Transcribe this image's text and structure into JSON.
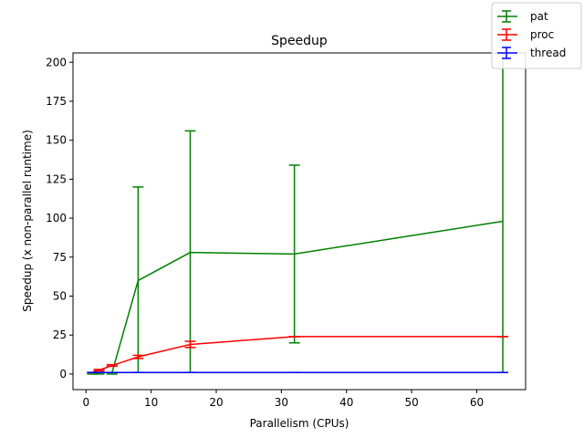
{
  "chart_data": {
    "type": "line",
    "title": "Speedup",
    "xlabel": "Parallelism (CPUs)",
    "ylabel": "Speedup (x non-parallel runtime)",
    "xlim": [
      -2,
      67.5
    ],
    "ylim": [
      -10,
      206
    ],
    "xticks": [
      0,
      10,
      20,
      30,
      40,
      50,
      60
    ],
    "yticks": [
      0,
      25,
      50,
      75,
      100,
      125,
      150,
      175,
      200
    ],
    "grid": false,
    "legend_position": "top-right",
    "series": [
      {
        "name": "pat",
        "color": "#008000",
        "x": [
          1,
          2,
          4,
          8,
          16,
          32,
          64
        ],
        "y": [
          1,
          1,
          1,
          60,
          78,
          77,
          98
        ],
        "err_low": [
          0,
          0,
          0,
          1,
          1,
          20,
          1
        ],
        "err_high": [
          1,
          1,
          1,
          120,
          156,
          134,
          210
        ]
      },
      {
        "name": "proc",
        "color": "#ff0000",
        "x": [
          1,
          2,
          4,
          8,
          16,
          32,
          64
        ],
        "y": [
          1,
          2.5,
          5.5,
          11,
          19,
          24,
          24
        ],
        "err_low": [
          1,
          2,
          5,
          10,
          17,
          24,
          24
        ],
        "err_high": [
          1,
          3,
          6,
          12,
          21,
          24,
          24
        ]
      },
      {
        "name": "thread",
        "color": "#0000ff",
        "x": [
          1,
          2,
          4,
          8,
          16,
          32,
          64
        ],
        "y": [
          1,
          1,
          1,
          1,
          1,
          1,
          1
        ],
        "err_low": [
          1,
          1,
          1,
          1,
          1,
          1,
          1
        ],
        "err_high": [
          1,
          1,
          1,
          1,
          1,
          1,
          1
        ]
      }
    ]
  }
}
